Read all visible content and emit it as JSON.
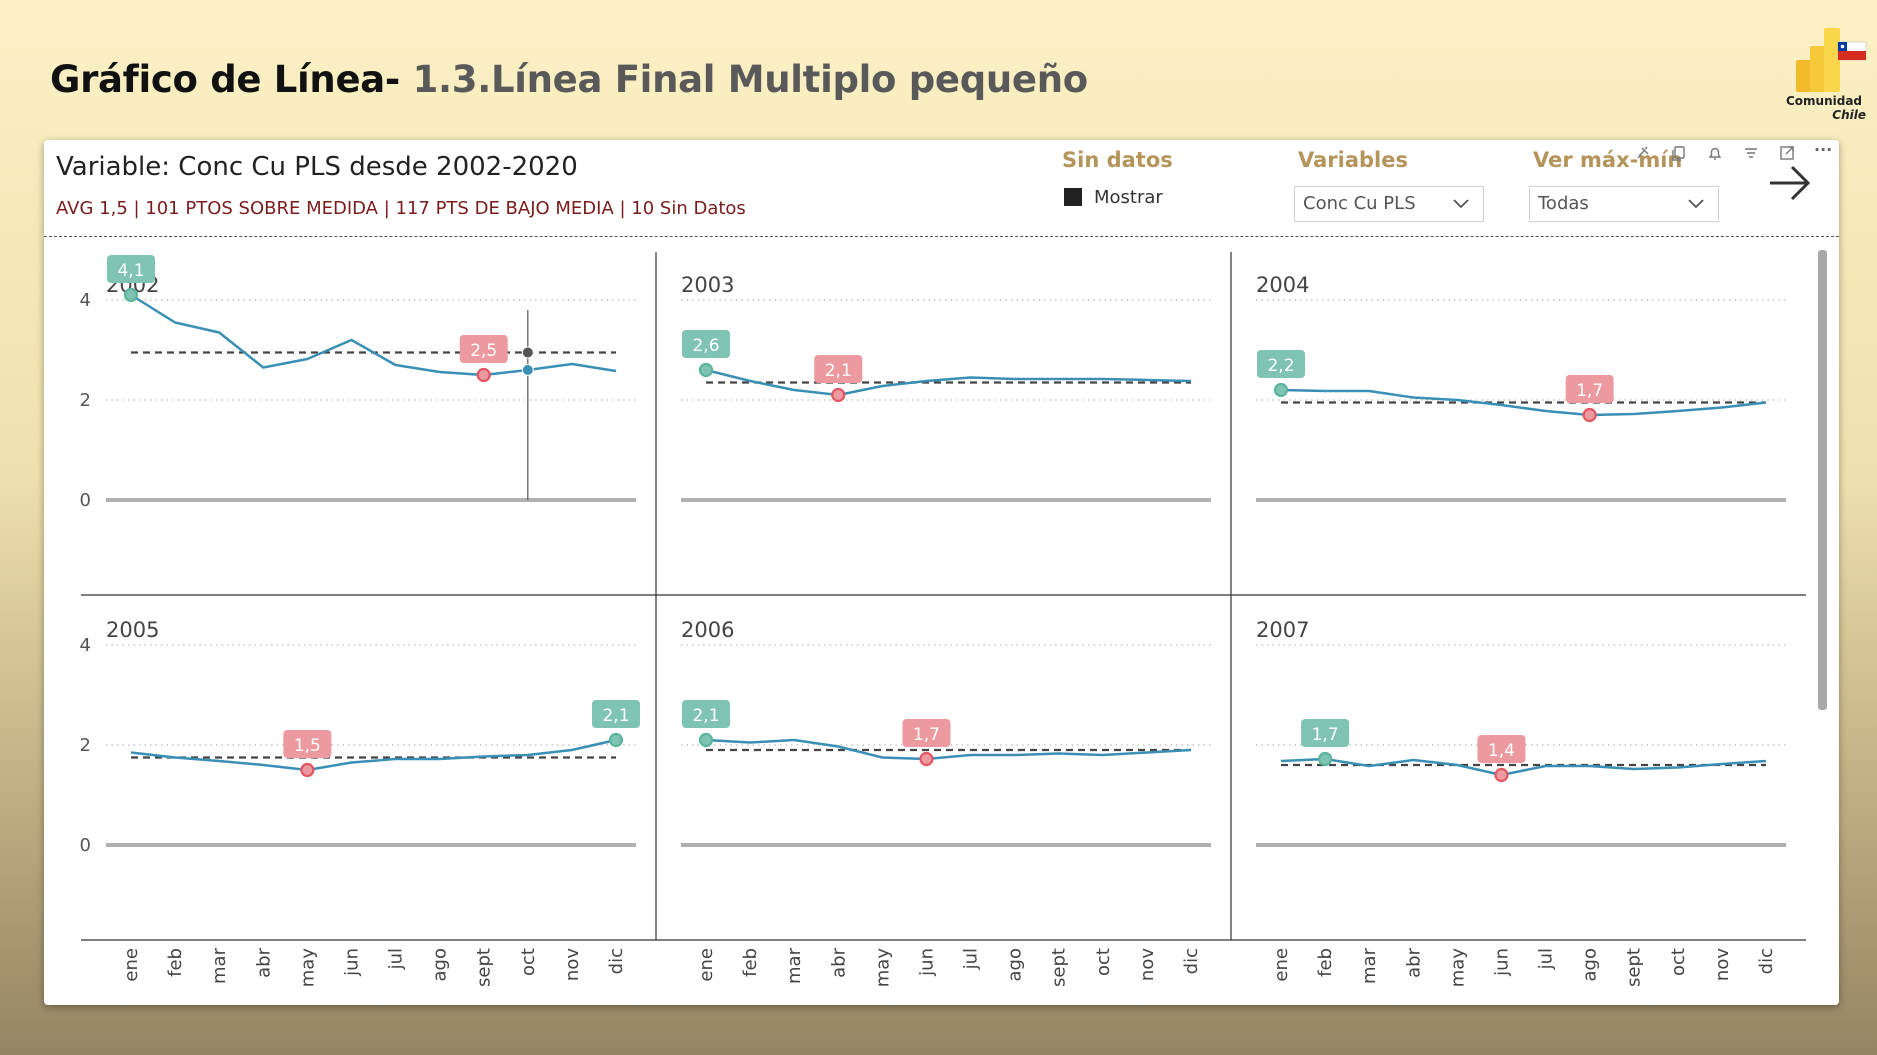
{
  "header": {
    "title_bold": "Gráfico de Línea-",
    "title_sub": " 1.3.Línea Final Multiplo pequeño",
    "logo_line1": "Comunidad",
    "logo_line2": "Chile"
  },
  "visual": {
    "variable_title": "Variable: Conc Cu PLS desde 2002-2020",
    "stats": "AVG 1,5 |  101 PTOS SOBRE MEDIDA | 117 PTS DE BAJO MEDIA | 10 Sin Datos"
  },
  "slicers": {
    "sin_datos_label": "Sin datos",
    "mostrar_label": "Mostrar",
    "variables_label": "Variables",
    "variables_value": "Conc Cu PLS",
    "ver_label": "Ver máx-mín",
    "ver_value": "Todas"
  },
  "toolbar": {
    "more": "···"
  },
  "colors": {
    "line": "#3a8fb5",
    "max_fill": "#7fc3b2",
    "min_fill": "#ec9aa0",
    "max_point": "#5bb59c",
    "min_point": "#e25562",
    "avg_line": "#444444"
  },
  "chart_data": {
    "type": "line",
    "months": [
      "ene",
      "feb",
      "mar",
      "abr",
      "may",
      "jun",
      "jul",
      "ago",
      "sept",
      "oct",
      "nov",
      "dic"
    ],
    "y_ticks": [
      "0",
      "2",
      "4"
    ],
    "ylim": [
      0,
      5
    ],
    "grid": true,
    "panels": [
      {
        "year": "2002",
        "values": [
          4.1,
          3.55,
          3.35,
          2.65,
          2.82,
          3.2,
          2.7,
          2.56,
          2.5,
          2.6,
          2.72,
          2.58
        ],
        "avg": 2.95,
        "max_index": 0,
        "max_label": "4,1",
        "min_index": 8,
        "min_label": "2,5",
        "hover_index": 9,
        "hover_avg": 2.95
      },
      {
        "year": "2003",
        "values": [
          2.6,
          2.38,
          2.2,
          2.1,
          2.28,
          2.38,
          2.45,
          2.42,
          2.42,
          2.42,
          2.4,
          2.38
        ],
        "avg": 2.35,
        "max_index": 0,
        "max_label": "2,6",
        "min_index": 3,
        "min_label": "2,1"
      },
      {
        "year": "2004",
        "values": [
          2.2,
          2.18,
          2.18,
          2.05,
          2.0,
          1.9,
          1.78,
          1.7,
          1.72,
          1.78,
          1.85,
          1.95
        ],
        "avg": 1.95,
        "max_index": 0,
        "max_label": "2,2",
        "min_index": 7,
        "min_label": "1,7"
      },
      {
        "year": "2005",
        "values": [
          1.85,
          1.75,
          1.68,
          1.6,
          1.5,
          1.65,
          1.72,
          1.72,
          1.77,
          1.8,
          1.9,
          2.1
        ],
        "avg": 1.75,
        "max_index": 11,
        "max_label": "2,1",
        "min_index": 4,
        "min_label": "1,5"
      },
      {
        "year": "2006",
        "values": [
          2.1,
          2.05,
          2.1,
          1.97,
          1.75,
          1.72,
          1.8,
          1.8,
          1.83,
          1.8,
          1.85,
          1.9
        ],
        "avg": 1.9,
        "max_index": 0,
        "max_label": "2,1",
        "min_index": 5,
        "min_label": "1,7"
      },
      {
        "year": "2007",
        "values": [
          1.68,
          1.72,
          1.58,
          1.7,
          1.6,
          1.4,
          1.58,
          1.58,
          1.52,
          1.55,
          1.62,
          1.68
        ],
        "avg": 1.6,
        "max_index": 1,
        "max_label": "1,7",
        "min_index": 5,
        "min_label": "1,4"
      }
    ]
  }
}
